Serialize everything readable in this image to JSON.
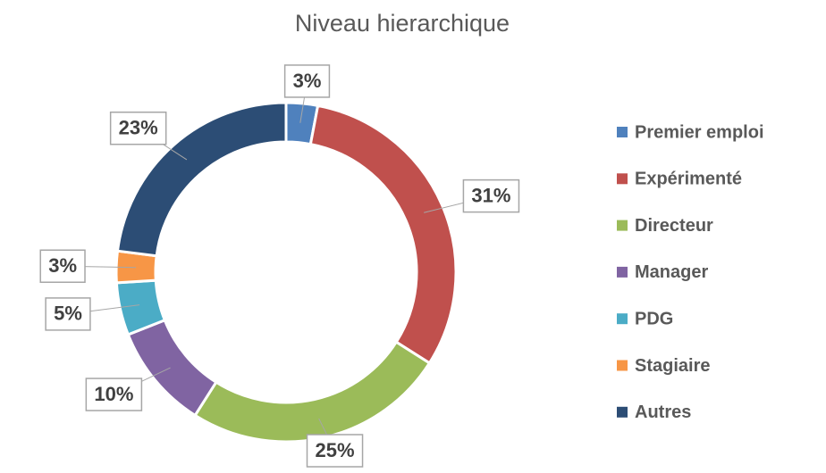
{
  "chart_data": {
    "type": "donut",
    "title": "Niveau hierarchique",
    "categories": [
      "Premier emploi",
      "Expérimenté",
      "Directeur",
      "Manager",
      "PDG",
      "Stagiaire",
      "Autres"
    ],
    "values": [
      3,
      31,
      25,
      10,
      5,
      3,
      23
    ],
    "value_labels": [
      "3%",
      "31%",
      "25%",
      "10%",
      "5%",
      "3%",
      "23%"
    ],
    "colors": [
      "#4f81bd",
      "#c0504d",
      "#9bbb59",
      "#8064a2",
      "#4bacc6",
      "#f79646",
      "#2c4d75"
    ],
    "legend": "right"
  }
}
